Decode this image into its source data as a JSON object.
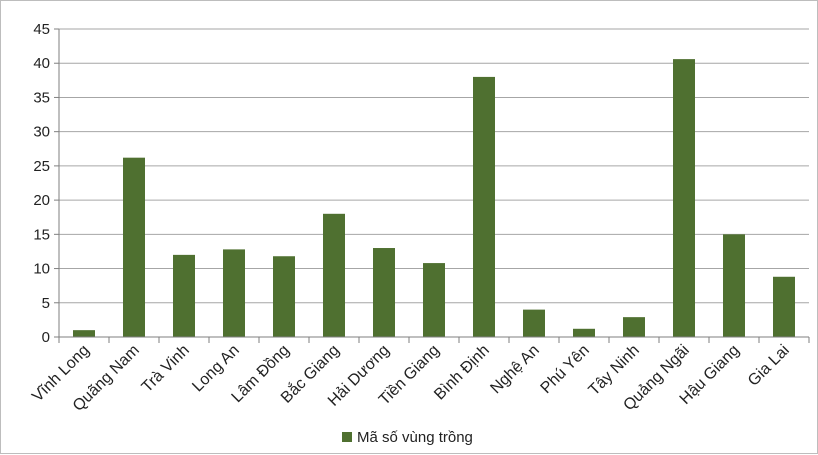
{
  "chart_data": {
    "type": "bar",
    "categories": [
      "Vĩnh Long",
      "Quãng Nam",
      "Trà Vinh",
      "Long An",
      "Lâm Đồng",
      "Bắc Giang",
      "Hải Dương",
      "Tiền Giang",
      "Bình Định",
      "Nghệ An",
      "Phú Yên",
      "Tây Ninh",
      "Quảng Ngãi",
      "Hậu Giang",
      "Gia Lai"
    ],
    "series": [
      {
        "name": "Mã số vùng trồng",
        "values": [
          1,
          26.2,
          12,
          12.8,
          11.8,
          18,
          13,
          10.8,
          38,
          4,
          1.2,
          2.9,
          40.6,
          15,
          8.8
        ],
        "color": "#4f7030"
      }
    ],
    "ylim": [
      0,
      45
    ],
    "yticks": [
      0,
      5,
      10,
      15,
      20,
      25,
      30,
      35,
      40,
      45
    ],
    "grid": true,
    "legend": "bottom",
    "gridline_color": "#a6a6a6",
    "axis_color": "#7f7f7f"
  }
}
